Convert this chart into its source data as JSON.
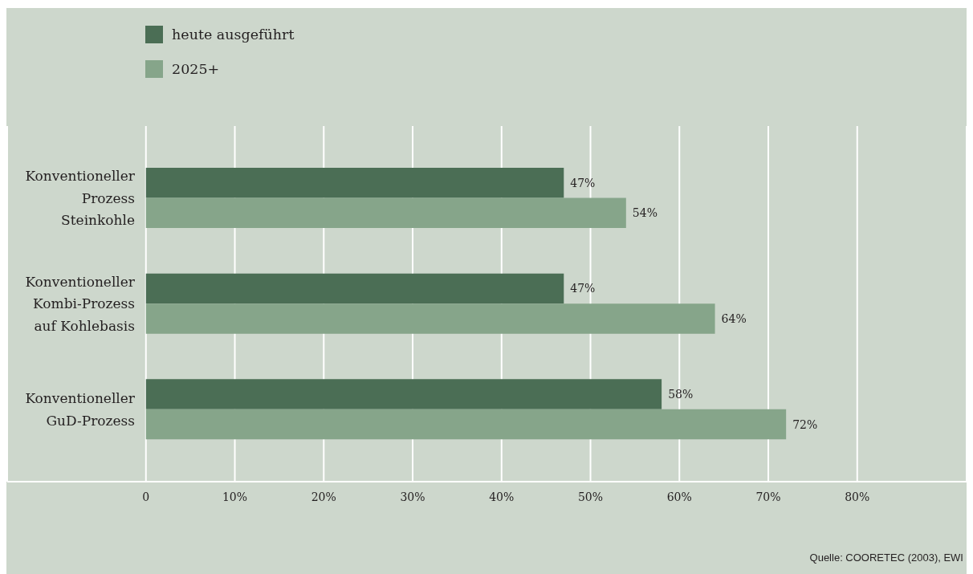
{
  "chart_data": {
    "type": "bar",
    "orientation": "horizontal",
    "categories": [
      "Konventioneller\nProzess\nSteinkohle",
      "Konventioneller\nKombi-Prozess\nauf Kohlebasis",
      "Konventioneller\nGuD-Prozess"
    ],
    "series": [
      {
        "name": "heute ausgeführt",
        "color": "#4b6e55",
        "values": [
          47,
          47,
          58
        ],
        "value_labels": [
          "47%",
          "47%",
          "58%"
        ]
      },
      {
        "name": "2025+",
        "color": "#86a58a",
        "values": [
          54,
          64,
          72
        ],
        "value_labels": [
          "54%",
          "64%",
          "72%"
        ]
      }
    ],
    "xlim": [
      -15.6,
      92.3
    ],
    "xticks": [
      0,
      {
        "value": 10,
        "label": "10%"
      },
      {
        "value": 20,
        "label": "20%"
      },
      {
        "value": 30,
        "label": "30%"
      },
      {
        "value": 40,
        "label": "40%"
      },
      {
        "value": 50,
        "label": "50%"
      },
      {
        "value": 60,
        "label": "60%"
      },
      {
        "value": 70,
        "label": "70%"
      },
      {
        "value": 80,
        "label": "80%"
      }
    ],
    "grid": "x",
    "legend": "top left",
    "annotations": [
      "Quelle: COORETEC (2003), EWI"
    ]
  }
}
